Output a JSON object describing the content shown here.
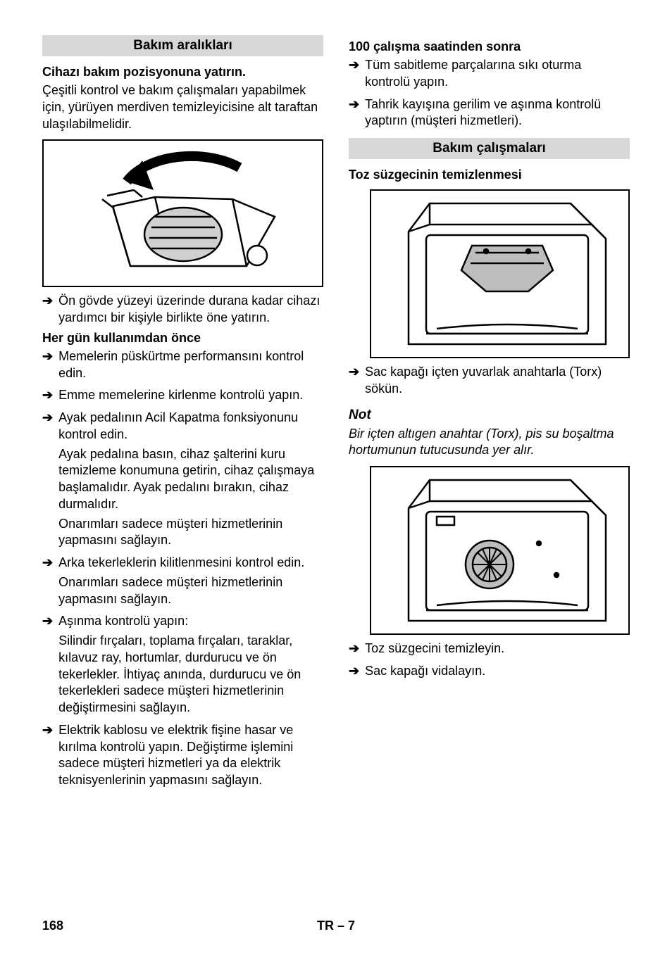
{
  "left": {
    "section_title": "Bakım aralıkları",
    "sub1": "Cihazı bakım pozisyonuna yatırın.",
    "intro": "Çeşitli kontrol ve bakım çalışmaları yapabilmek için, yürüyen merdiven temizleyicisine alt taraftan ulaşılabilmelidir.",
    "fig1_bullet": "Ön gövde yüzeyi üzerinde durana kadar cihazı yardımcı bir kişiyle birlikte öne yatırın.",
    "sub2": "Her gün kullanımdan önce",
    "daily": [
      [
        "Memelerin püskürtme performansını kontrol edin."
      ],
      [
        "Emme memelerine kirlenme kontrolü yapın."
      ],
      [
        "Ayak pedalının Acil Kapatma fonksiyonunu kontrol edin.",
        "Ayak pedalına basın, cihaz şalterini kuru temizleme konumuna getirin, cihaz çalışmaya başlamalıdır. Ayak pedalını bırakın, cihaz durmalıdır.",
        "Onarımları sadece müşteri hizmetlerinin yapmasını sağlayın."
      ],
      [
        "Arka tekerleklerin kilitlenmesini kontrol edin.",
        "Onarımları sadece müşteri hizmetlerinin yapmasını sağlayın."
      ],
      [
        "Aşınma kontrolü yapın:",
        "Silindir fırçaları, toplama fırçaları, taraklar, kılavuz ray, hortumlar, durdurucu ve ön tekerlekler. İhtiyaç anında, durdurucu ve ön tekerlekleri sadece müşteri hizmetlerinin değiştirmesini sağlayın."
      ],
      [
        "Elektrik kablosu ve elektrik fişine hasar ve kırılma kontrolü yapın. Değiştirme işlemini sadece müşteri hizmetleri ya da elektrik teknisyenlerinin yapmasını sağlayın."
      ]
    ]
  },
  "right": {
    "sub1": "100 çalışma saatinden sonra",
    "h100": [
      "Tüm sabitleme parçalarına sıkı oturma kontrolü yapın.",
      "Tahrik kayışına gerilim ve aşınma kontrolü yaptırın (müşteri hizmetleri)."
    ],
    "section_title": "Bakım çalışmaları",
    "sub2": "Toz süzgecinin temizlenmesi",
    "fig2_bullet": "Sac kapağı içten yuvarlak anahtarla (Torx) sökün.",
    "note_label": "Not",
    "note_text": "Bir içten altıgen anahtar (Torx), pis su boşaltma hortumunun tutucusunda yer alır.",
    "fig3_bullets": [
      "Toz süzgecini temizleyin.",
      "Sac kapağı vidalayın."
    ]
  },
  "footer": {
    "page": "168",
    "lang": "TR",
    "seq": "– 7"
  }
}
